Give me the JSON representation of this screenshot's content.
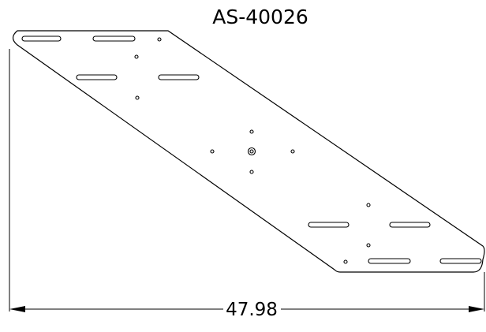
{
  "drawing": {
    "part_number": "AS-40026",
    "overall_width_dimension": "47.98"
  },
  "colors": {
    "line": "#000000",
    "background": "#ffffff"
  }
}
